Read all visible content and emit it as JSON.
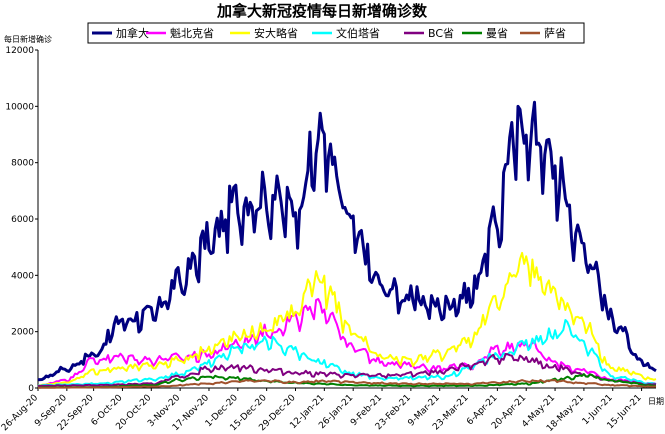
{
  "chart_data": {
    "type": "line",
    "title": "加拿大新冠疫情每日新增确诊数",
    "ylabel": "每日新增确诊",
    "xlabel": "日期",
    "ylim": [
      0,
      12000
    ],
    "y_ticks": [
      0,
      2000,
      4000,
      6000,
      8000,
      10000,
      12000
    ],
    "x_start": "2020-08-26",
    "x_end": "2021-06-22",
    "x_tick_labels": [
      "26-Aug-20",
      "9-Sep-20",
      "22-Sep-20",
      "6-Oct-20",
      "20-Oct-20",
      "3-Nov-20",
      "17-Nov-20",
      "1-Dec-20",
      "15-Dec-20",
      "29-Dec-20",
      "12-Jan-21",
      "26-Jan-21",
      "9-Feb-21",
      "23-Feb-21",
      "9-Mar-21",
      "23-Mar-21",
      "6-Apr-21",
      "20-Apr-21",
      "4-May-21",
      "18-May-21",
      "1-Jun-21",
      "15-Jun-21"
    ],
    "x_tick_dates": [
      "2020-08-26",
      "2020-09-09",
      "2020-09-22",
      "2020-10-06",
      "2020-10-20",
      "2020-11-03",
      "2020-11-17",
      "2020-12-01",
      "2020-12-15",
      "2020-12-29",
      "2021-01-12",
      "2021-01-26",
      "2021-02-09",
      "2021-02-23",
      "2021-03-09",
      "2021-03-23",
      "2021-04-06",
      "2021-04-20",
      "2021-05-04",
      "2021-05-18",
      "2021-06-01",
      "2021-06-15"
    ],
    "grid": false,
    "legend_position": "top",
    "series": [
      {
        "name": "加拿大",
        "color": "#00007f",
        "x": [
          "2020-08-26",
          "2020-09-09",
          "2020-09-22",
          "2020-10-06",
          "2020-10-20",
          "2020-11-03",
          "2020-11-17",
          "2020-12-01",
          "2020-12-15",
          "2020-12-29",
          "2021-01-05",
          "2021-01-12",
          "2021-01-19",
          "2021-01-26",
          "2021-02-09",
          "2021-02-23",
          "2021-03-09",
          "2021-03-23",
          "2021-04-06",
          "2021-04-12",
          "2021-04-20",
          "2021-04-28",
          "2021-05-04",
          "2021-05-18",
          "2021-06-01",
          "2021-06-15",
          "2021-06-22"
        ],
        "y": [
          300,
          700,
          1200,
          2400,
          2600,
          3800,
          5200,
          6600,
          6800,
          6300,
          8000,
          9000,
          7000,
          5500,
          3600,
          3200,
          2900,
          3300,
          5800,
          8500,
          9400,
          8700,
          7600,
          5000,
          2500,
          1000,
          600
        ]
      },
      {
        "name": "魁北克省",
        "color": "#ff00ff",
        "x": [
          "2020-08-26",
          "2020-09-09",
          "2020-09-22",
          "2020-10-06",
          "2020-10-20",
          "2020-11-03",
          "2020-11-17",
          "2020-12-01",
          "2020-12-15",
          "2020-12-29",
          "2021-01-05",
          "2021-01-12",
          "2021-01-26",
          "2021-02-09",
          "2021-02-23",
          "2021-03-09",
          "2021-03-23",
          "2021-04-06",
          "2021-04-20",
          "2021-05-04",
          "2021-05-18",
          "2021-06-01",
          "2021-06-22"
        ],
        "y": [
          80,
          300,
          1000,
          1100,
          1000,
          1100,
          1200,
          1600,
          2000,
          2400,
          2700,
          2900,
          1400,
          950,
          800,
          700,
          800,
          1400,
          1600,
          900,
          600,
          300,
          150
        ]
      },
      {
        "name": "安大略省",
        "color": "#ffff00",
        "x": [
          "2020-08-26",
          "2020-09-09",
          "2020-09-22",
          "2020-10-06",
          "2020-10-20",
          "2020-11-03",
          "2020-11-17",
          "2020-12-01",
          "2020-12-15",
          "2020-12-29",
          "2021-01-08",
          "2021-01-12",
          "2021-01-26",
          "2021-02-09",
          "2021-02-23",
          "2021-03-09",
          "2021-03-23",
          "2021-04-06",
          "2021-04-18",
          "2021-05-04",
          "2021-05-18",
          "2021-06-01",
          "2021-06-22"
        ],
        "y": [
          100,
          200,
          600,
          700,
          800,
          1000,
          1400,
          1800,
          2100,
          2700,
          4000,
          3500,
          2000,
          1100,
          1000,
          1200,
          1700,
          3000,
          4600,
          3300,
          2300,
          700,
          300
        ]
      },
      {
        "name": "文伯塔省",
        "color": "#00ffff",
        "x": [
          "2020-08-26",
          "2020-09-22",
          "2020-10-20",
          "2020-11-03",
          "2020-11-17",
          "2020-12-01",
          "2020-12-15",
          "2020-12-29",
          "2021-01-12",
          "2021-01-26",
          "2021-02-09",
          "2021-03-09",
          "2021-04-06",
          "2021-04-20",
          "2021-05-04",
          "2021-05-10",
          "2021-05-18",
          "2021-06-01",
          "2021-06-22"
        ],
        "y": [
          100,
          150,
          300,
          500,
          900,
          1400,
          1700,
          1300,
          900,
          500,
          350,
          400,
          1100,
          1600,
          1900,
          2200,
          1500,
          400,
          150
        ]
      },
      {
        "name": "BC省",
        "color": "#800080",
        "x": [
          "2020-08-26",
          "2020-09-22",
          "2020-10-20",
          "2020-11-03",
          "2020-11-17",
          "2020-12-01",
          "2020-12-15",
          "2020-12-29",
          "2021-01-12",
          "2021-01-26",
          "2021-02-09",
          "2021-03-09",
          "2021-03-23",
          "2021-04-06",
          "2021-04-20",
          "2021-05-04",
          "2021-05-18",
          "2021-06-01",
          "2021-06-22"
        ],
        "y": [
          80,
          100,
          150,
          400,
          700,
          750,
          650,
          550,
          500,
          450,
          450,
          550,
          800,
          1100,
          1000,
          750,
          500,
          250,
          120
        ]
      },
      {
        "name": "曼省",
        "color": "#008000",
        "x": [
          "2020-08-26",
          "2020-09-22",
          "2020-10-20",
          "2020-11-03",
          "2020-11-17",
          "2020-12-01",
          "2020-12-15",
          "2020-12-29",
          "2021-01-12",
          "2021-01-26",
          "2021-02-23",
          "2021-03-23",
          "2021-04-20",
          "2021-05-04",
          "2021-05-18",
          "2021-06-01",
          "2021-06-22"
        ],
        "y": [
          20,
          30,
          100,
          300,
          400,
          350,
          250,
          180,
          150,
          100,
          80,
          80,
          150,
          300,
          450,
          250,
          80
        ]
      },
      {
        "name": "萨省",
        "color": "#a0522d",
        "x": [
          "2020-08-26",
          "2020-09-22",
          "2020-10-20",
          "2020-11-17",
          "2020-12-01",
          "2020-12-15",
          "2020-12-29",
          "2021-01-12",
          "2021-01-26",
          "2021-02-23",
          "2021-03-23",
          "2021-04-06",
          "2021-04-20",
          "2021-05-04",
          "2021-05-18",
          "2021-06-01",
          "2021-06-22"
        ],
        "y": [
          10,
          20,
          50,
          150,
          250,
          250,
          200,
          250,
          200,
          150,
          150,
          200,
          250,
          250,
          180,
          100,
          50
        ]
      }
    ]
  }
}
